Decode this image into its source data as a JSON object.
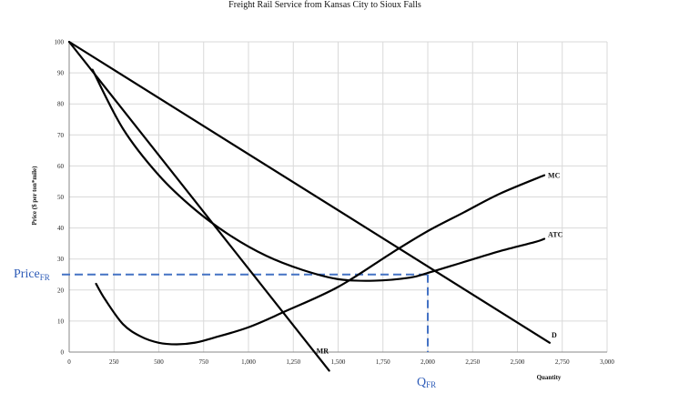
{
  "chart_data": {
    "type": "line",
    "title": "Freight Rail Service from Kansas City to Sioux Falls",
    "xlabel": "Quantity",
    "ylabel": "Price ($ per ton*mile)",
    "xlim": [
      0,
      3000
    ],
    "ylim": [
      0,
      100
    ],
    "x_ticks": [
      0,
      250,
      500,
      750,
      1000,
      1250,
      1500,
      1750,
      2000,
      2250,
      2500,
      2750,
      3000
    ],
    "x_tick_labels": [
      "0",
      "250",
      "500",
      "750",
      "1,000",
      "1,250",
      "1,500",
      "1,750",
      "2,000",
      "2,250",
      "2,500",
      "2,750",
      "3,000"
    ],
    "y_ticks": [
      0,
      10,
      20,
      30,
      40,
      50,
      60,
      70,
      80,
      90,
      100
    ],
    "y_tick_labels": [
      "0",
      "10",
      "20",
      "30",
      "40",
      "50",
      "60",
      "70",
      "80",
      "90",
      "100"
    ],
    "grid": true,
    "series": [
      {
        "name": "D",
        "x": [
          0,
          2680
        ],
        "y": [
          100,
          3
        ]
      },
      {
        "name": "MR",
        "x": [
          0,
          1450
        ],
        "y": [
          100,
          -6
        ]
      },
      {
        "name": "MC",
        "x": [
          150,
          200,
          300,
          400,
          500,
          600,
          700,
          800,
          1000,
          1200,
          1500,
          1800,
          2000,
          2200,
          2400,
          2650
        ],
        "y": [
          22,
          17,
          9,
          5,
          3,
          2.5,
          3,
          4.5,
          8,
          13,
          21,
          32,
          39,
          45,
          51,
          57
        ]
      },
      {
        "name": "ATC",
        "x": [
          130,
          300,
          500,
          700,
          900,
          1100,
          1300,
          1500,
          1700,
          1900,
          2000,
          2200,
          2400,
          2600,
          2650
        ],
        "y": [
          91,
          72,
          57,
          46,
          37.5,
          31,
          26.5,
          23.5,
          23,
          24,
          25.5,
          29,
          32.5,
          35.5,
          36.5
        ]
      }
    ],
    "guides": {
      "x": 2000,
      "y": 25
    },
    "annotations": {
      "price_label": "Price",
      "price_sub": "FR",
      "q_label": "Q",
      "q_sub": "FR"
    },
    "colors": {
      "lines": "#000000",
      "guides": "#4472c4",
      "grid": "#d9d9d9",
      "annotation": "#2e5cb8"
    }
  }
}
